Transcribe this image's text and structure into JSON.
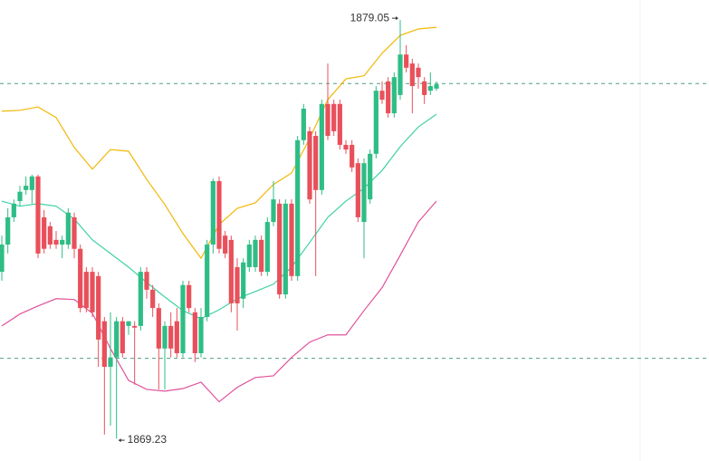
{
  "chart_data": {
    "type": "candlestick",
    "ylim": [
      1868.7,
      1879.52
    ],
    "up_color": "#2ebd85",
    "down_color": "#e8505b",
    "open": [
      1873.14,
      1873.78,
      1874.42,
      1874.8,
      1875.06,
      1875.06,
      1875.38,
      1874.42,
      1874.21,
      1873.89,
      1873.78,
      1873.78,
      1874.42,
      1873.68,
      1873.14,
      1873.14,
      1873.04,
      1871.98,
      1870.91,
      1871.13,
      1871.98,
      1871.87,
      1871.87,
      1871.87,
      1873.14,
      1872.72,
      1872.29,
      1871.34,
      1871.87,
      1871.98,
      1871.23,
      1872.83,
      1872.19,
      1871.23,
      1872.08,
      1873.78,
      1875.27,
      1873.99,
      1873.89,
      1873.25,
      1872.51,
      1873.25,
      1873.25,
      1873.89,
      1873.14,
      1874.31,
      1874.74,
      1872.61,
      1874.74,
      1873.04,
      1876.23,
      1876.44,
      1876.33,
      1875.06,
      1877.08,
      1877.08,
      1877.08,
      1876.12,
      1876.12,
      1875.69,
      1874.31,
      1874.84,
      1875.91,
      1877.39,
      1877.61,
      1876.86,
      1877.29,
      1878.24,
      1878.03,
      1877.93,
      1877.61,
      1877.39,
      1877.44
    ],
    "high": [
      1873.99,
      1874.63,
      1874.84,
      1875.16,
      1875.38,
      1875.42,
      1875.42,
      1874.59,
      1874.31,
      1874.1,
      1873.99,
      1874.63,
      1874.53,
      1873.78,
      1873.25,
      1873.25,
      1873.14,
      1872.08,
      1872.19,
      1872.08,
      1872.08,
      1871.98,
      1871.98,
      1873.25,
      1873.25,
      1872.83,
      1872.4,
      1871.98,
      1872.19,
      1872.29,
      1872.93,
      1872.93,
      1872.29,
      1872.29,
      1873.89,
      1875.33,
      1875.38,
      1874.1,
      1873.99,
      1873.46,
      1873.46,
      1873.89,
      1873.99,
      1873.99,
      1874.42,
      1875.27,
      1874.84,
      1874.84,
      1874.84,
      1876.33,
      1877.08,
      1876.54,
      1876.44,
      1877.18,
      1878.03,
      1877.18,
      1877.18,
      1876.23,
      1876.23,
      1875.8,
      1875.8,
      1876.01,
      1877.5,
      1877.61,
      1877.71,
      1877.82,
      1879.05,
      1878.46,
      1878.14,
      1878.03,
      1877.71,
      1877.82,
      1877.61
    ],
    "low": [
      1872.93,
      1873.57,
      1874.31,
      1874.68,
      1874.95,
      1874.74,
      1873.46,
      1873.57,
      1873.68,
      1873.68,
      1873.46,
      1873.68,
      1873.46,
      1872.19,
      1872.19,
      1872.08,
      1870.91,
      1869.32,
      1869.53,
      1869.23,
      1871.13,
      1871.66,
      1870.49,
      1871.76,
      1872.51,
      1872.08,
      1870.38,
      1870.38,
      1871.13,
      1871.13,
      1871.13,
      1872.19,
      1871.02,
      1871.13,
      1871.98,
      1873.57,
      1873.57,
      1873.46,
      1872.19,
      1871.76,
      1872.29,
      1873.14,
      1873.14,
      1873.04,
      1873.04,
      1874.21,
      1872.51,
      1872.51,
      1872.93,
      1872.93,
      1876.12,
      1874.74,
      1873.04,
      1874.95,
      1876.23,
      1876.33,
      1876.01,
      1875.91,
      1875.48,
      1874.31,
      1873.46,
      1874.74,
      1875.8,
      1877.08,
      1876.76,
      1876.76,
      1877.18,
      1877.82,
      1876.86,
      1877.44,
      1877.08,
      1877.29,
      1877.39
    ],
    "close": [
      1873.78,
      1874.42,
      1874.74,
      1875.02,
      1875.16,
      1875.38,
      1873.57,
      1873.68,
      1873.78,
      1873.78,
      1873.89,
      1874.53,
      1873.68,
      1872.29,
      1872.29,
      1872.19,
      1871.55,
      1870.91,
      1871.13,
      1871.98,
      1871.23,
      1871.98,
      1871.83,
      1873.14,
      1872.72,
      1872.29,
      1871.34,
      1871.87,
      1871.34,
      1871.23,
      1872.83,
      1872.29,
      1871.23,
      1872.08,
      1873.78,
      1875.27,
      1873.68,
      1873.57,
      1872.4,
      1872.4,
      1873.36,
      1873.78,
      1873.89,
      1873.14,
      1874.31,
      1874.84,
      1872.61,
      1874.74,
      1873.04,
      1876.23,
      1876.97,
      1874.84,
      1875.06,
      1877.08,
      1876.33,
      1876.44,
      1876.12,
      1876.01,
      1875.59,
      1874.42,
      1875.69,
      1875.91,
      1877.39,
      1877.18,
      1876.86,
      1877.71,
      1878.24,
      1877.93,
      1877.5,
      1877.71,
      1877.29,
      1877.5,
      1877.54
    ],
    "bands": [
      {
        "color": "#f2b705",
        "x": [
          0,
          3,
          6,
          9,
          12,
          15,
          18,
          21,
          24,
          27,
          30,
          33,
          36,
          39,
          42,
          45,
          48,
          51,
          54,
          57,
          60,
          63,
          66,
          69,
          72
        ],
        "values": [
          1876.91,
          1876.93,
          1877.01,
          1876.76,
          1876.06,
          1875.55,
          1876.01,
          1875.97,
          1875.31,
          1874.72,
          1874.04,
          1873.46,
          1874.25,
          1874.63,
          1874.76,
          1875.19,
          1875.46,
          1876.27,
          1877.18,
          1877.67,
          1877.74,
          1878.27,
          1878.69,
          1878.84,
          1878.88
        ]
      },
      {
        "color": "#3fd1a5",
        "x": [
          0,
          3,
          6,
          9,
          12,
          15,
          18,
          21,
          24,
          27,
          30,
          33,
          36,
          39,
          42,
          45,
          48,
          51,
          54,
          57,
          60,
          63,
          66,
          69,
          72
        ],
        "values": [
          1874.8,
          1874.68,
          1874.74,
          1874.68,
          1874.38,
          1873.89,
          1873.57,
          1873.25,
          1872.89,
          1872.55,
          1872.23,
          1872.04,
          1872.25,
          1872.51,
          1872.68,
          1872.85,
          1873.25,
          1873.83,
          1874.42,
          1874.8,
          1875.1,
          1875.52,
          1876.08,
          1876.54,
          1876.84
        ]
      },
      {
        "color": "#e0529c",
        "x": [
          0,
          3,
          6,
          9,
          12,
          15,
          18,
          21,
          24,
          27,
          30,
          33,
          36,
          39,
          42,
          45,
          48,
          51,
          54,
          57,
          60,
          63,
          66,
          69,
          72
        ],
        "values": [
          1871.87,
          1872.15,
          1872.34,
          1872.51,
          1872.49,
          1872.17,
          1871.34,
          1870.59,
          1870.38,
          1870.34,
          1870.4,
          1870.55,
          1870.09,
          1870.43,
          1870.66,
          1870.7,
          1871.13,
          1871.49,
          1871.66,
          1871.66,
          1872.23,
          1872.77,
          1873.53,
          1874.31,
          1874.8
        ]
      }
    ],
    "levels": [
      1877.56,
      1871.11
    ],
    "level_color": "#4f9f7f"
  }
}
